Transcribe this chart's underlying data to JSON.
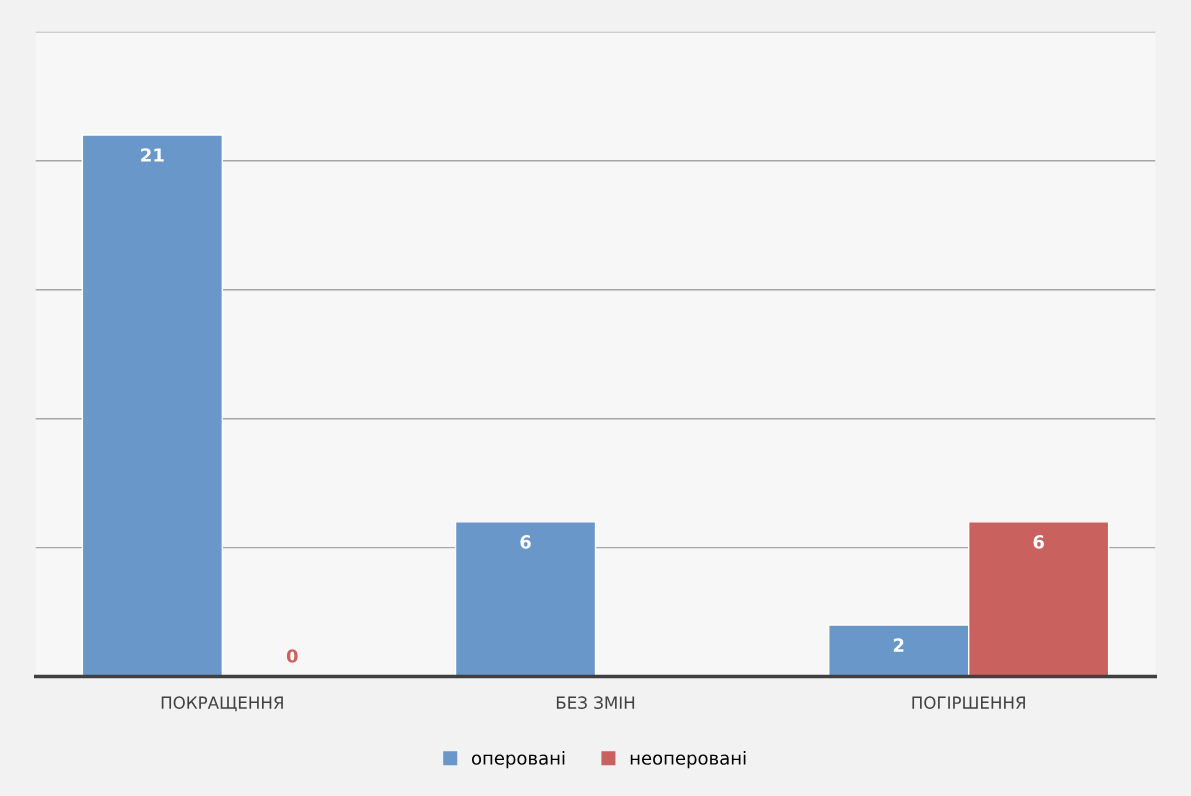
{
  "chart_data": {
    "type": "bar",
    "categories": [
      "ПОКРАЩЕННЯ",
      "БЕЗ ЗМІН",
      "ПОГІРШЕННЯ"
    ],
    "series": [
      {
        "name": "оперовані",
        "color": "#6a97c9",
        "values": [
          21,
          6,
          2
        ]
      },
      {
        "name": "неоперовані",
        "color": "#c9625f",
        "values": [
          0,
          null,
          6
        ]
      }
    ],
    "ylim": [
      0,
      25
    ],
    "yticks": [
      {
        "value": 0,
        "label": null
      },
      {
        "value": 5,
        "label": null
      },
      {
        "value": 10,
        "label": null
      },
      {
        "value": 15,
        "label": null
      },
      {
        "value": 20,
        "label": null
      },
      {
        "value": 25,
        "label": null
      }
    ],
    "tick_labels": "x",
    "grid": "y",
    "legend": "bottom",
    "data_labels": true
  }
}
